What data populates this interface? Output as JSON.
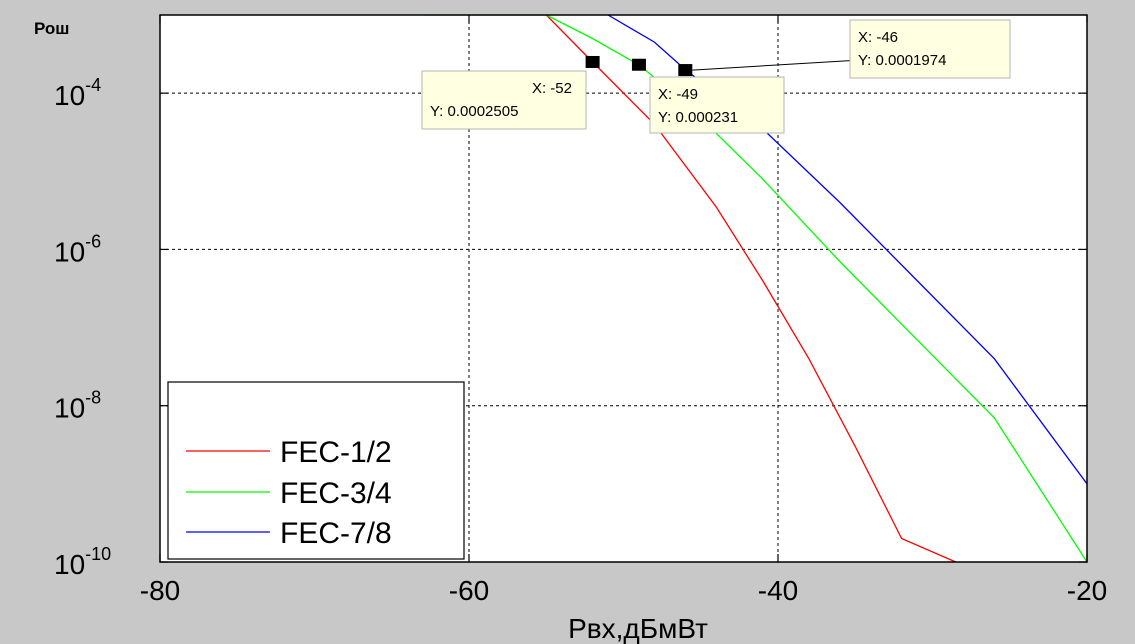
{
  "colors": {
    "figure_bg": "#c8c8c8",
    "axes_bg": "#ffffff",
    "datatip_bg": "#ffffe1",
    "datatip_border": "#b4b4b4"
  },
  "chart_data": {
    "type": "line",
    "ylabel": "Рош",
    "xlabel": "Рвх,дБмВт",
    "xlim": [
      -80,
      -20
    ],
    "ylim": [
      1e-10,
      0.001
    ],
    "yscale": "log",
    "grid": true,
    "x_ticks": [
      {
        "value": -80,
        "label": "-80"
      },
      {
        "value": -60,
        "label": "-60"
      },
      {
        "value": -40,
        "label": "-40"
      },
      {
        "value": -20,
        "label": "-20"
      }
    ],
    "y_ticks": [
      {
        "value": 1e-10,
        "base": "10",
        "exp": "-10"
      },
      {
        "value": 1e-08,
        "base": "10",
        "exp": "-8"
      },
      {
        "value": 1e-06,
        "base": "10",
        "exp": "-6"
      },
      {
        "value": 0.0001,
        "base": "10",
        "exp": "-4"
      }
    ],
    "legend_position": "bottom-left",
    "series": [
      {
        "name": "FEC-1/2",
        "color": "#ff0000",
        "points": [
          [
            -55,
            0.001
          ],
          [
            -52,
            0.00025
          ],
          [
            -48,
            4e-05
          ],
          [
            -44,
            3.5e-06
          ],
          [
            -41,
            4e-07
          ],
          [
            -38,
            4e-08
          ],
          [
            -35,
            3e-09
          ],
          [
            -32,
            2e-10
          ],
          [
            -28.5,
            1e-10
          ]
        ]
      },
      {
        "name": "FEC-3/4",
        "color": "#00ff00",
        "points": [
          [
            -63,
            0.001
          ],
          [
            -55,
            0.001
          ],
          [
            -52,
            0.0005
          ],
          [
            -49,
            0.00023
          ],
          [
            -46,
            7.5e-05
          ],
          [
            -41,
            8e-06
          ],
          [
            -36,
            7e-07
          ],
          [
            -31,
            7e-08
          ],
          [
            -26,
            7e-09
          ],
          [
            -20,
            1e-10
          ]
        ]
      },
      {
        "name": "FEC-7/8",
        "color": "#0000ff",
        "points": [
          [
            -51,
            0.001
          ],
          [
            -48,
            0.00045
          ],
          [
            -46,
            0.0002
          ],
          [
            -41,
            3.5e-05
          ],
          [
            -36,
            4e-06
          ],
          [
            -31,
            4e-07
          ],
          [
            -26,
            4e-08
          ],
          [
            -20,
            1e-09
          ]
        ]
      }
    ],
    "datatips": [
      {
        "x": -52,
        "y": 0.0002505,
        "x_text": "X: -52",
        "y_text": "Y: 0.0002505"
      },
      {
        "x": -49,
        "y": 0.000231,
        "x_text": "X: -49",
        "y_text": "Y: 0.000231"
      },
      {
        "x": -46,
        "y": 0.0001974,
        "x_text": "X: -46",
        "y_text": "Y: 0.0001974"
      }
    ]
  }
}
